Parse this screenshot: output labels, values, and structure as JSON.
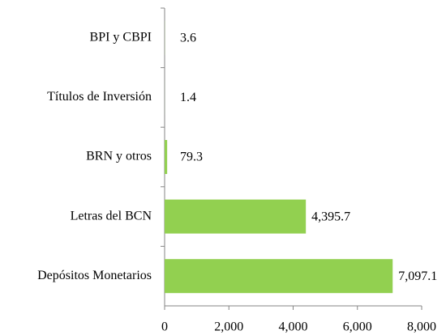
{
  "chart_data": {
    "type": "bar",
    "orientation": "horizontal",
    "categories": [
      "BPI y CBPI",
      "Títulos de Inversión",
      "BRN y otros",
      "Letras del BCN",
      "Depósitos Monetarios"
    ],
    "values": [
      3.6,
      1.4,
      79.3,
      4395.7,
      7097.1
    ],
    "value_labels": [
      "3.6",
      "1.4",
      "79.3",
      "4,395.7",
      "7,097.1"
    ],
    "color": "#92d050",
    "xlim": [
      0,
      8000
    ],
    "xticks": [
      0,
      {
        "value": 2000,
        "label": "2,000"
      },
      {
        "value": 4000,
        "label": "4,000"
      },
      {
        "value": 6000,
        "label": "6,000"
      },
      {
        "value": 8000,
        "label": "8,000"
      }
    ],
    "grid": false
  }
}
